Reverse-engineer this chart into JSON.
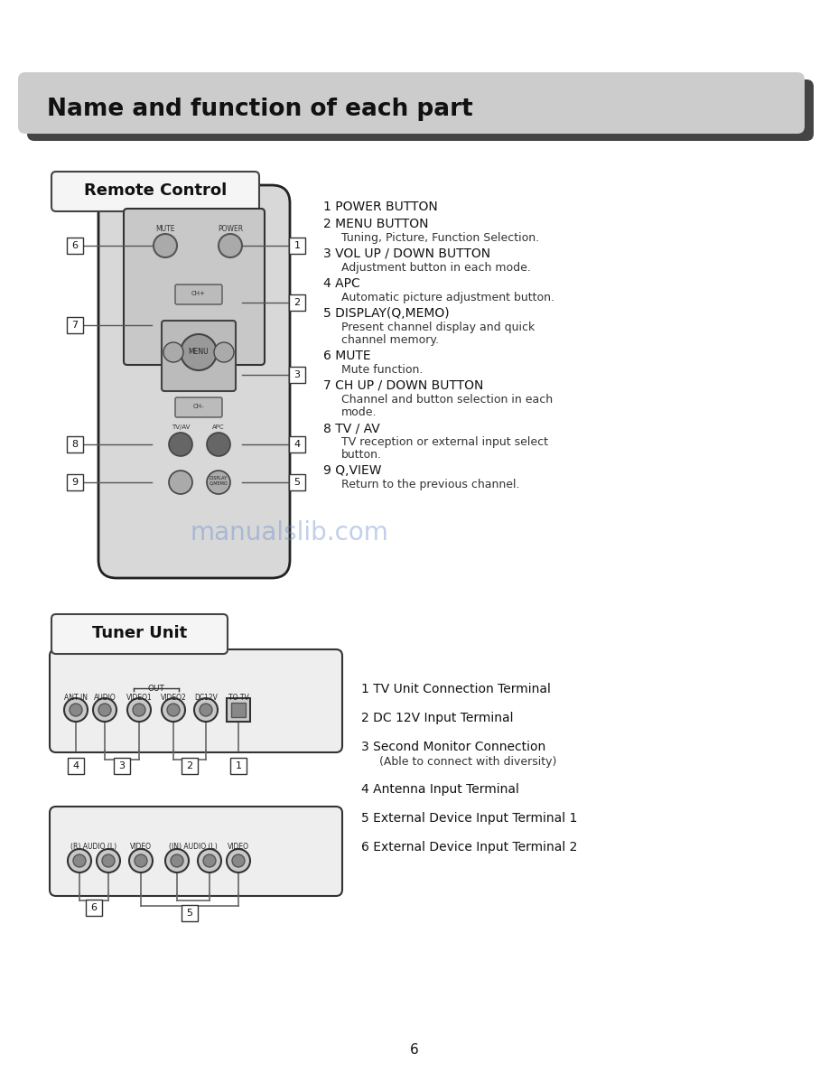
{
  "title": "Name and function of each part",
  "page_number": "6",
  "bg_color": "#ffffff",
  "header_bg": "#cccccc",
  "remote_control_label": "Remote Control",
  "tuner_unit_label": "Tuner Unit",
  "remote_items": [
    [
      "1 POWER BUTTON",
      ""
    ],
    [
      "2 MENU BUTTON",
      "Tuning, Picture, Function Selection."
    ],
    [
      "3 VOL UP / DOWN BUTTON",
      "Adjustment button in each mode."
    ],
    [
      "4 APC",
      "Automatic picture adjustment button."
    ],
    [
      "5 DISPLAY(Q,MEMO)",
      "Present channel display and quick\nchannel memory."
    ],
    [
      "6 MUTE",
      "Mute function."
    ],
    [
      "7 CH UP / DOWN BUTTON",
      "Channel and button selection in each\nmode."
    ],
    [
      "8 TV / AV",
      "TV reception or external input select\nbutton."
    ],
    [
      "9 Q,VIEW",
      "Return to the previous channel."
    ]
  ],
  "tuner_items": [
    [
      "1 TV Unit Connection Terminal",
      ""
    ],
    [
      "2 DC 12V Input Terminal",
      ""
    ],
    [
      "3 Second Monitor Connection",
      "(Able to connect with diversity)"
    ],
    [
      "4 Antenna Input Terminal",
      ""
    ],
    [
      "5 External Device Input Terminal 1",
      ""
    ],
    [
      "6 External Device Input Terminal 2",
      ""
    ]
  ],
  "watermark_text": "manualslib.com",
  "watermark_color": "#6688cc"
}
